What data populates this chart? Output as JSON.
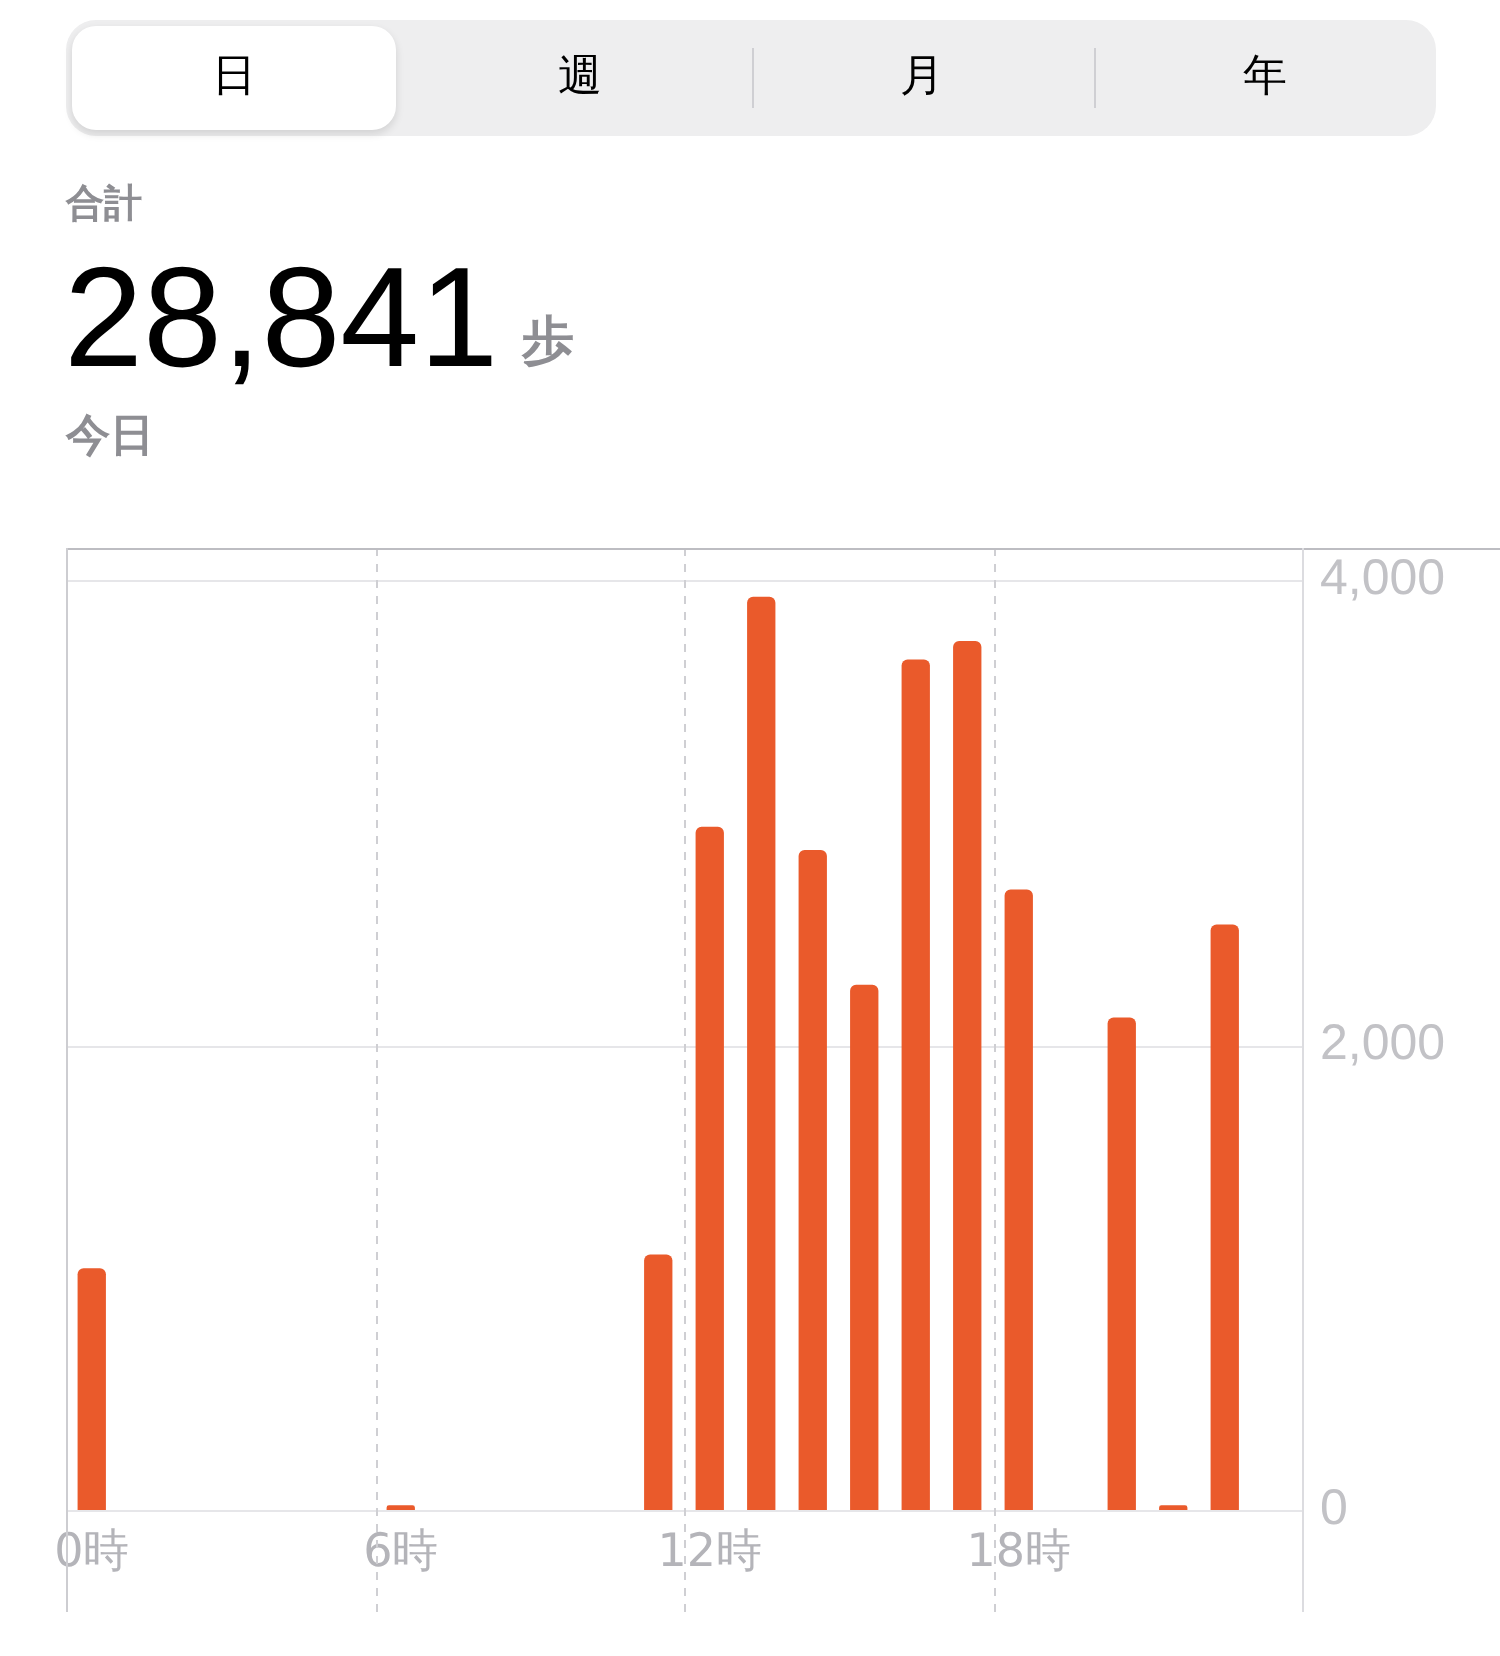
{
  "chart_data": {
    "type": "bar",
    "title": "合計",
    "subtitle": "今日",
    "annotations": [
      "日",
      "週",
      "月",
      "年",
      "28,841",
      "歩"
    ],
    "categories": [
      "0時",
      null,
      null,
      null,
      null,
      null,
      "6時",
      null,
      null,
      null,
      null,
      null,
      "12時",
      null,
      null,
      null,
      null,
      null,
      "18時",
      null,
      null,
      null,
      null,
      null
    ],
    "series": [
      {
        "color": "#ea5a2b",
        "values": [
          1040,
          null,
          null,
          null,
          null,
          null,
          20,
          null,
          null,
          null,
          null,
          1100,
          2940,
          3930,
          2840,
          2260,
          3660,
          3740,
          2670,
          null,
          2120,
          20,
          2520,
          null
        ]
      }
    ],
    "ylim": [
      0,
      4140
    ],
    "yticks": [
      0,
      {
        "value": 2000,
        "label": "2,000"
      },
      {
        "value": 4000,
        "label": "4,000"
      }
    ],
    "grid": true
  }
}
